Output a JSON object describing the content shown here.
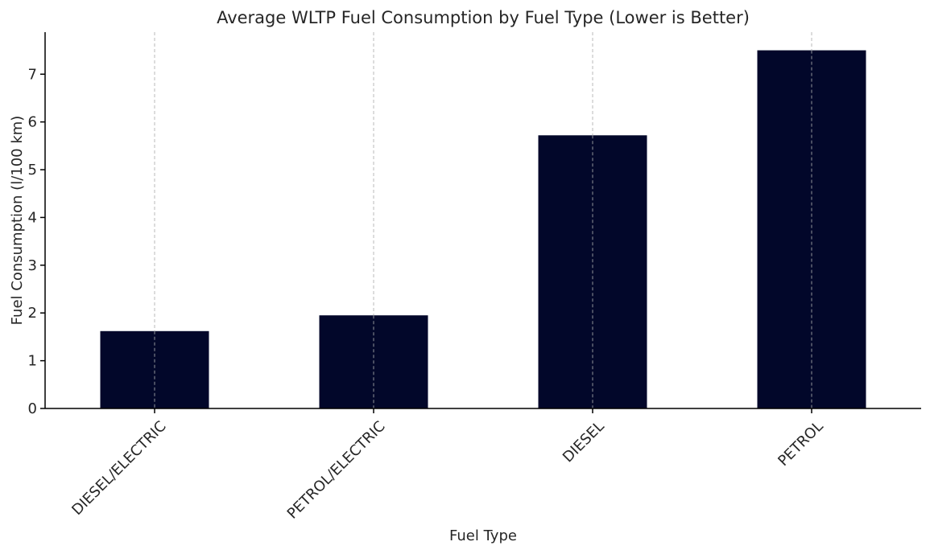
{
  "chart_data": {
    "type": "bar",
    "title": "Average WLTP Fuel Consumption by Fuel Type (Lower is Better)",
    "xlabel": "Fuel Type",
    "ylabel": "Fuel Consumption (l/100 km)",
    "categories": [
      "DIESEL/ELECTRIC",
      "PETROL/ELECTRIC",
      "DIESEL",
      "PETROL"
    ],
    "values": [
      1.62,
      1.95,
      5.72,
      7.5
    ],
    "ylim": [
      0,
      7.88
    ],
    "yticks": [
      0,
      1,
      2,
      3,
      4,
      5,
      6,
      7
    ],
    "bar_color": "#02072a",
    "grid": "vertical dashed at category centers",
    "legend": "none"
  }
}
